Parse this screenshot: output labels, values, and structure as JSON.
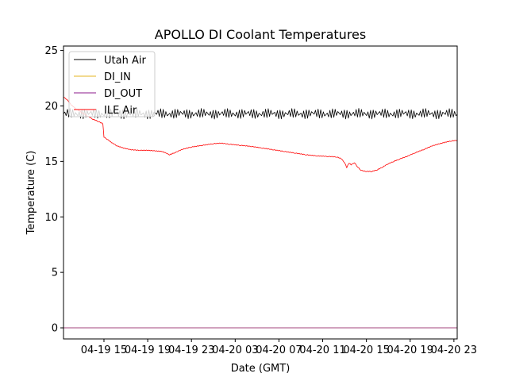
{
  "chart_data": {
    "type": "line",
    "title": "APOLLO DI Coolant Temperatures",
    "xlabel": "Date (GMT)",
    "ylabel": "Temperature (C)",
    "x_unit": "hours since 04-19 00:00 GMT",
    "xlim": [
      11.3,
      47.3
    ],
    "ylim": [
      -1.0,
      25.4
    ],
    "xticks": [
      {
        "value": 15,
        "label": "04-19 15"
      },
      {
        "value": 19,
        "label": "04-19 19"
      },
      {
        "value": 23,
        "label": "04-19 23"
      },
      {
        "value": 27,
        "label": "04-20 03"
      },
      {
        "value": 31,
        "label": "04-20 07"
      },
      {
        "value": 35,
        "label": "04-20 11"
      },
      {
        "value": 39,
        "label": "04-20 15"
      },
      {
        "value": 43,
        "label": "04-20 19"
      },
      {
        "value": 47,
        "label": "04-20 23"
      }
    ],
    "yticks": [
      {
        "value": 0,
        "label": "0"
      },
      {
        "value": 5,
        "label": "5"
      },
      {
        "value": 10,
        "label": "10"
      },
      {
        "value": 15,
        "label": "15"
      },
      {
        "value": 20,
        "label": "20"
      },
      {
        "value": 25,
        "label": "25"
      }
    ],
    "legend_position": "top-left",
    "series": [
      {
        "name": "Utah Air",
        "color": "#000000",
        "style": "oscillating",
        "center": 19.3,
        "amplitude": 0.4,
        "x_start": 11.3,
        "x_end": 47.3
      },
      {
        "name": "DI_IN",
        "color": "#e6b422",
        "x": [
          11.3,
          47.3
        ],
        "y": [
          0,
          0
        ]
      },
      {
        "name": "DI_OUT",
        "color": "#8b1a8b",
        "x": [
          11.3,
          47.3
        ],
        "y": [
          0,
          0
        ]
      },
      {
        "name": "ILE Air",
        "color": "#ff0000",
        "x": [
          11.3,
          11.6,
          12.0,
          12.5,
          13.0,
          13.5,
          14.0,
          14.5,
          14.9,
          15.0,
          15.3,
          15.7,
          16.2,
          16.8,
          17.5,
          18.3,
          19.0,
          19.7,
          20.3,
          20.7,
          21.0,
          21.5,
          22.2,
          23.0,
          24.0,
          25.0,
          25.7,
          26.5,
          27.5,
          28.5,
          29.5,
          30.5,
          31.5,
          32.5,
          33.5,
          34.5,
          35.5,
          36.3,
          36.7,
          37.0,
          37.2,
          37.4,
          37.6,
          37.9,
          38.2,
          38.5,
          38.7,
          39.0,
          39.5,
          40.0,
          40.5,
          41.0,
          41.5,
          42.0,
          42.7,
          43.5,
          44.3,
          45.0,
          45.7,
          46.3,
          46.8,
          47.3
        ],
        "y": [
          20.8,
          20.6,
          20.1,
          19.7,
          19.4,
          19.1,
          18.8,
          18.6,
          18.4,
          17.2,
          17.0,
          16.7,
          16.4,
          16.2,
          16.05,
          16.0,
          16.0,
          15.95,
          15.9,
          15.75,
          15.6,
          15.8,
          16.1,
          16.3,
          16.45,
          16.6,
          16.65,
          16.55,
          16.45,
          16.35,
          16.2,
          16.05,
          15.9,
          15.75,
          15.6,
          15.5,
          15.45,
          15.4,
          15.25,
          14.9,
          14.45,
          14.85,
          14.7,
          14.9,
          14.5,
          14.2,
          14.15,
          14.1,
          14.1,
          14.25,
          14.5,
          14.8,
          15.0,
          15.2,
          15.45,
          15.8,
          16.1,
          16.4,
          16.6,
          16.75,
          16.85,
          16.9
        ]
      }
    ]
  }
}
